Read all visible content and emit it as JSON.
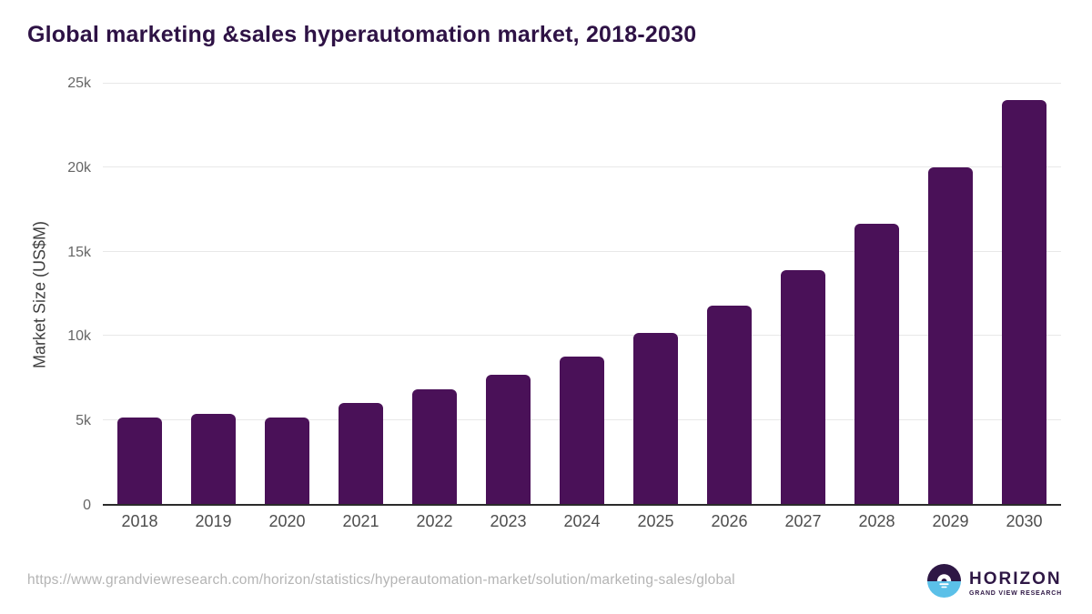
{
  "header": {
    "title": "Global marketing &sales hyperautomation market, 2018-2030"
  },
  "chart_data": {
    "type": "bar",
    "title": "Global marketing &sales hyperautomation market, 2018-2030",
    "categories": [
      "2018",
      "2019",
      "2020",
      "2021",
      "2022",
      "2023",
      "2024",
      "2025",
      "2026",
      "2027",
      "2028",
      "2029",
      "2030"
    ],
    "values": [
      5150,
      5350,
      5150,
      6000,
      6800,
      7700,
      8750,
      10150,
      11800,
      13900,
      16650,
      20000,
      24000
    ],
    "xlabel": "",
    "ylabel": "Market Size (US$M)",
    "ylim": [
      0,
      25000
    ],
    "yticks": [
      {
        "label": "0",
        "value": 0
      },
      {
        "label": "5k",
        "value": 5000
      },
      {
        "label": "10k",
        "value": 10000
      },
      {
        "label": "15k",
        "value": 15000
      },
      {
        "label": "20k",
        "value": 20000
      },
      {
        "label": "25k",
        "value": 25000
      }
    ],
    "grid": true,
    "legend": false,
    "bar_color": "#4a1158"
  },
  "colors": {
    "title": "#2e1245",
    "bar": "#4a1158",
    "gridline": "#e8e8e8",
    "axis_line": "#2b2b2b",
    "tick_text": "#666666",
    "x_label_text": "#4d4d4d",
    "source_text": "#b4b4b4",
    "logo_purple": "#2e1745",
    "logo_blue": "#5bc0e8"
  },
  "footer": {
    "source_url": "https://www.grandviewresearch.com/horizon/statistics/hyperautomation-market/solution/marketing-sales/global",
    "logo": {
      "name": "HORIZON",
      "subtitle": "GRAND VIEW RESEARCH"
    }
  }
}
